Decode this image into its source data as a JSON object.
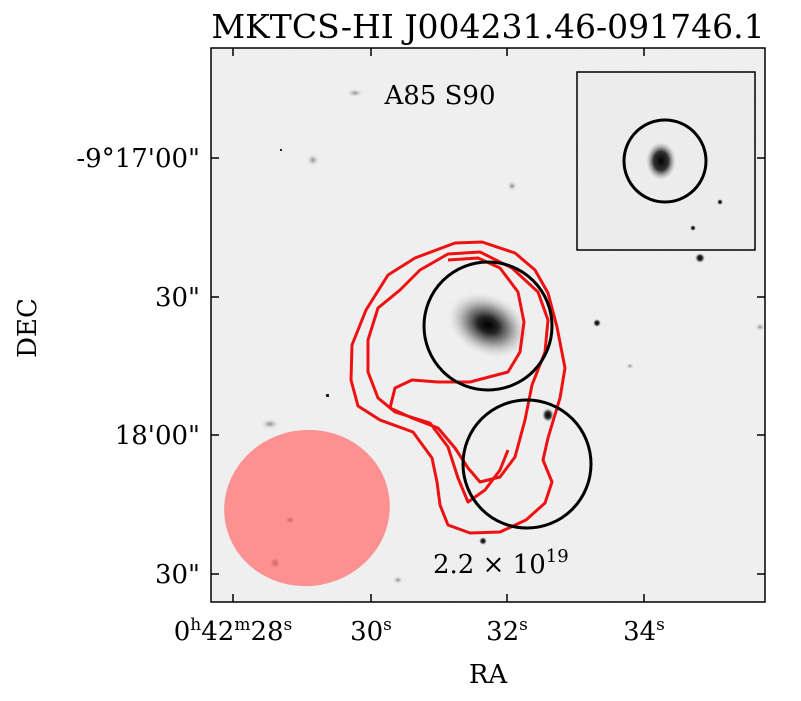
{
  "title": "MKTCS-HI J004231.46-091746.1",
  "field_label": "A85 S90",
  "contour_label": {
    "mantissa": "2.2 × 10",
    "exponent": "19"
  },
  "axes": {
    "xlabel": "RA",
    "ylabel": "DEC",
    "x_ticks": [
      {
        "text": "0",
        "sup1": "h",
        "text2": "42",
        "sup2": "m",
        "text3": "28",
        "sup3": "s"
      },
      {
        "text": "30",
        "sup1": "s"
      },
      {
        "text": "32",
        "sup1": "s"
      },
      {
        "text": "34",
        "sup1": "s"
      }
    ],
    "y_ticks": [
      "-9°17'00\"",
      "30\"",
      "18'00\"",
      "30\""
    ]
  },
  "colors": {
    "contour": "#ee1111",
    "beam": "#ff8080",
    "aperture": "#000000",
    "background": "#f4f4f4"
  }
}
